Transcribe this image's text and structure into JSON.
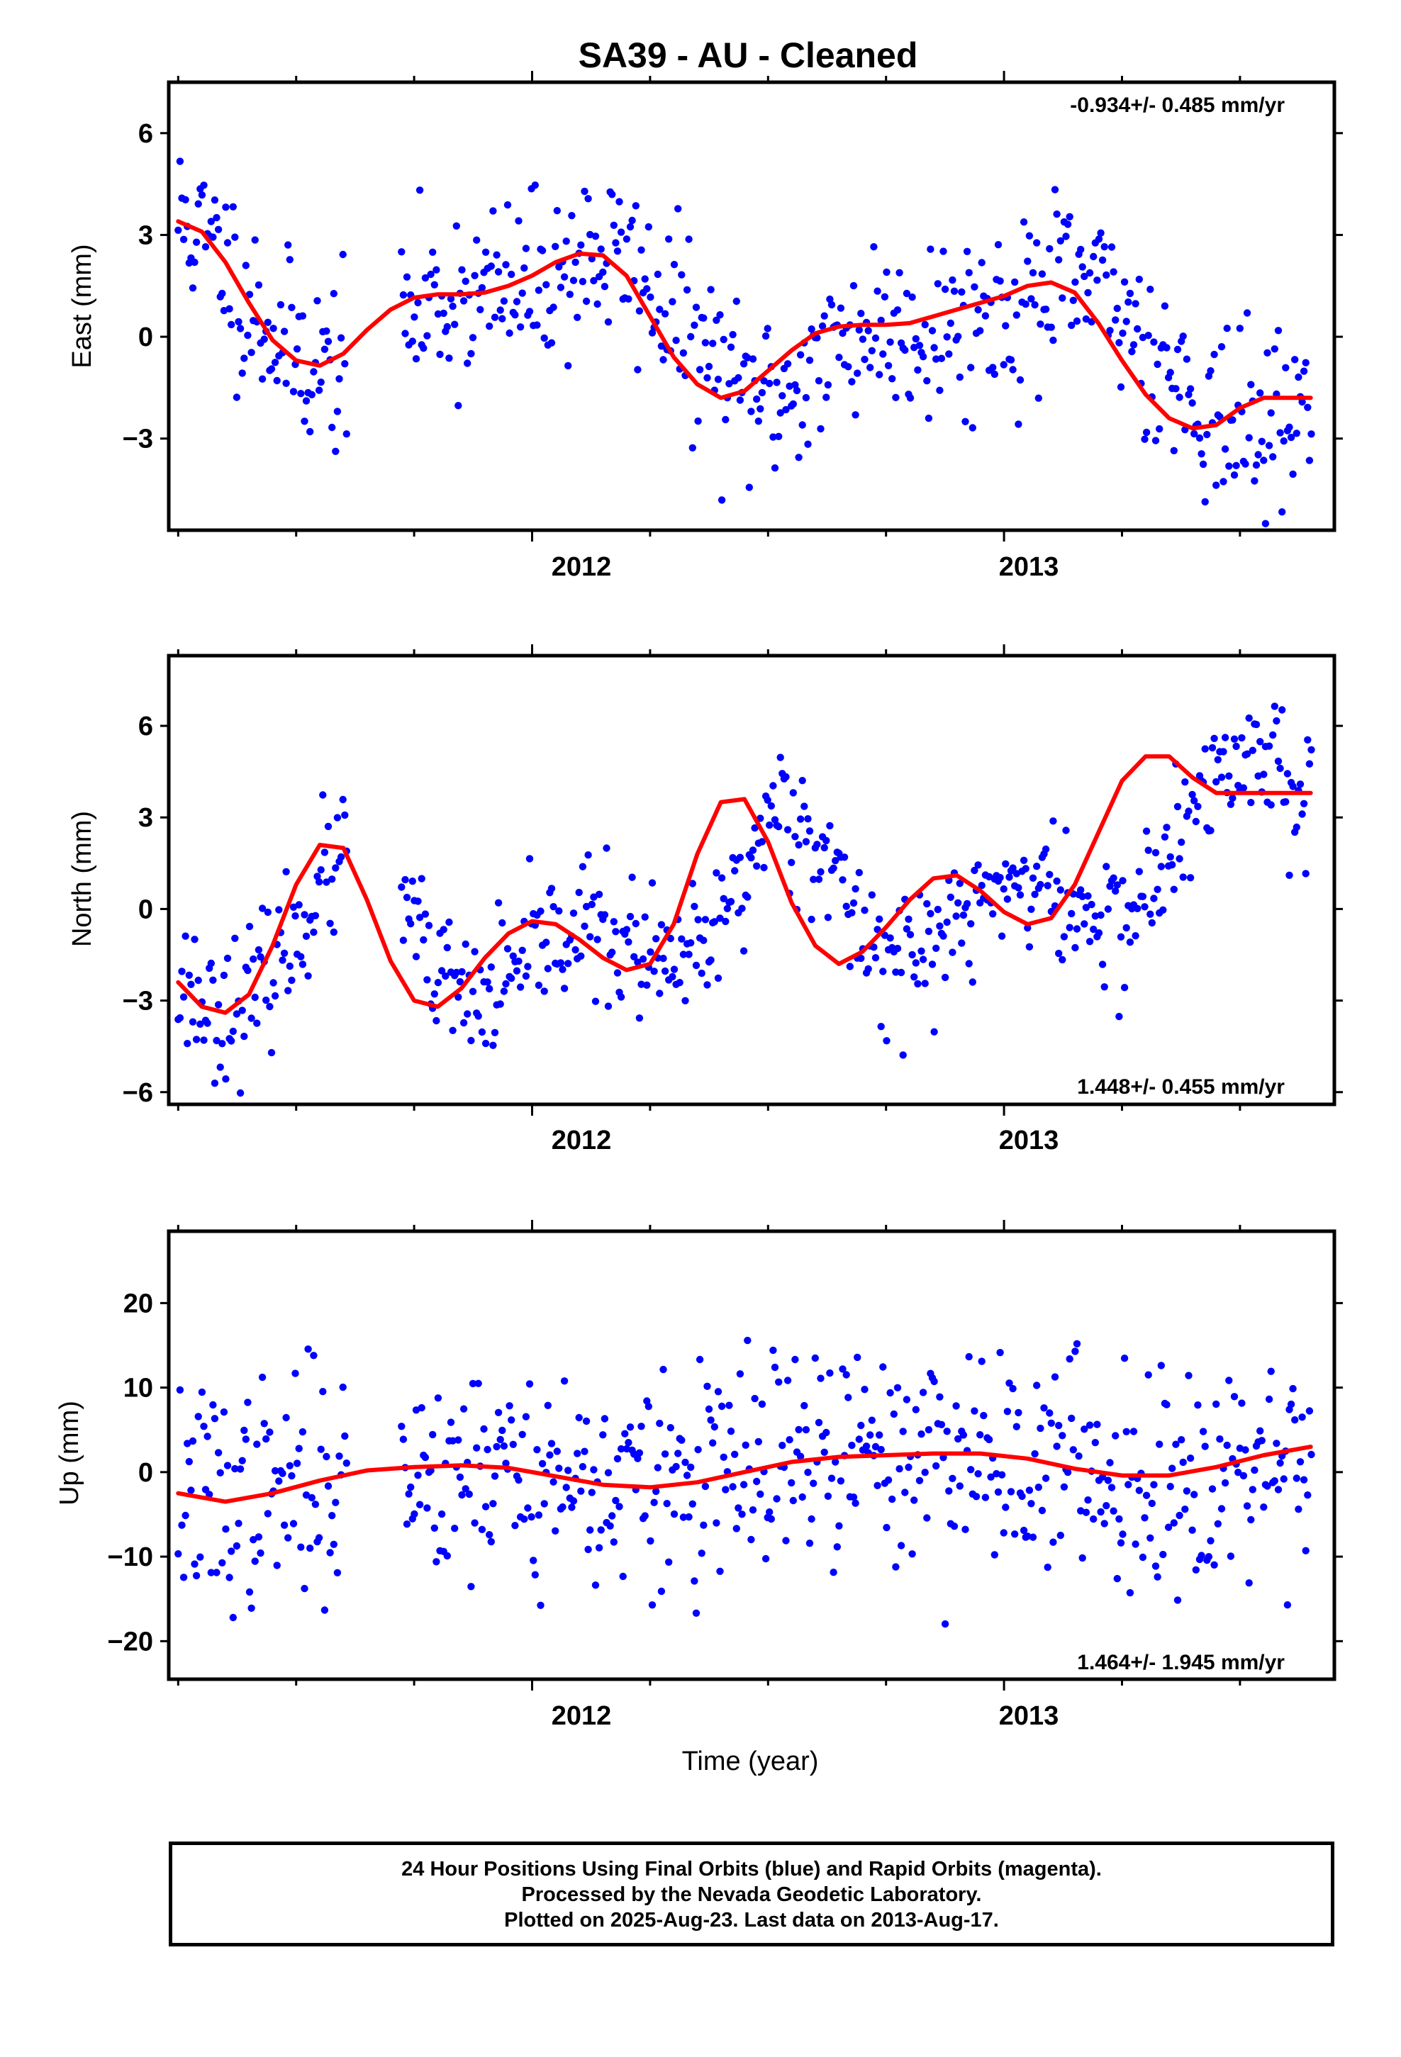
{
  "title": "SA39  - AU - Cleaned",
  "x_axis": {
    "label": "Time (year)",
    "range": [
      2011.23,
      2013.7
    ],
    "major_ticks": [
      2012,
      2013
    ],
    "minor_ticks": [
      2011.25,
      2011.5,
      2011.75,
      2012.25,
      2012.5,
      2012.75,
      2013.25,
      2013.5
    ]
  },
  "colors": {
    "points": "#0000ff",
    "fit": "#ff0000",
    "axis": "#000000"
  },
  "footer": {
    "line1": "24 Hour Positions Using Final Orbits (blue) and Rapid Orbits (magenta).",
    "line2": "Processed by the Nevada Geodetic Laboratory.",
    "line3": "Plotted on 2025-Aug-23. Last data on 2013-Aug-17."
  },
  "chart_data": [
    {
      "type": "scatter",
      "id": "east",
      "ylabel": "East (mm)",
      "ylim": [
        -5.7,
        7.5
      ],
      "yticks": [
        6,
        3,
        0,
        -3
      ],
      "ytick_labels": [
        "6",
        "3",
        "0",
        "−3"
      ],
      "rate_label": "-0.934+/- 0.485 mm/yr",
      "rate_position": "top-right",
      "fit": {
        "x": [
          2011.25,
          2011.3,
          2011.35,
          2011.4,
          2011.45,
          2011.5,
          2011.55,
          2011.6,
          2011.65,
          2011.7,
          2011.75,
          2011.8,
          2011.85,
          2011.9,
          2011.95,
          2012.0,
          2012.05,
          2012.1,
          2012.15,
          2012.2,
          2012.25,
          2012.3,
          2012.35,
          2012.4,
          2012.45,
          2012.5,
          2012.55,
          2012.6,
          2012.65,
          2012.7,
          2012.75,
          2012.8,
          2012.85,
          2012.9,
          2012.95,
          2013.0,
          2013.05,
          2013.1,
          2013.15,
          2013.2,
          2013.25,
          2013.3,
          2013.35,
          2013.4,
          2013.45,
          2013.5,
          2013.55,
          2013.6,
          2013.65
        ],
        "y": [
          3.4,
          3.1,
          2.2,
          1.0,
          -0.1,
          -0.7,
          -0.85,
          -0.5,
          0.2,
          0.8,
          1.15,
          1.25,
          1.25,
          1.3,
          1.5,
          1.8,
          2.2,
          2.45,
          2.4,
          1.8,
          0.6,
          -0.6,
          -1.4,
          -1.8,
          -1.6,
          -1.0,
          -0.4,
          0.1,
          0.3,
          0.35,
          0.35,
          0.4,
          0.6,
          0.8,
          1.0,
          1.2,
          1.5,
          1.6,
          1.3,
          0.4,
          -0.7,
          -1.7,
          -2.4,
          -2.7,
          -2.6,
          -2.1,
          -1.8,
          -1.8,
          -1.8
        ]
      },
      "knots": {
        "x": [
          2011.25,
          2011.33,
          2011.4,
          2011.48,
          2011.56,
          2011.64,
          2011.72,
          2011.8,
          2011.88,
          2011.96,
          2012.04,
          2012.12,
          2012.2,
          2012.28,
          2012.36,
          2012.44,
          2012.52,
          2012.6,
          2012.68,
          2012.76,
          2012.84,
          2012.92,
          2013.0,
          2013.08,
          2013.16,
          2013.24,
          2013.32,
          2013.4,
          2013.48,
          2013.56,
          2013.64
        ],
        "y": [
          3.5,
          2.6,
          1.0,
          -0.3,
          -0.85,
          -0.5,
          0.4,
          1.1,
          1.25,
          1.3,
          1.8,
          2.4,
          2.2,
          1.0,
          -0.5,
          -1.7,
          -1.7,
          -0.9,
          0.1,
          0.35,
          0.35,
          0.5,
          0.8,
          1.2,
          1.55,
          0.9,
          -0.4,
          -1.8,
          -2.6,
          -2.7,
          -2.0
        ]
      },
      "scatter_sd": 1.3,
      "gaps": [
        [
          2011.61,
          2011.72
        ]
      ],
      "n_points": 620,
      "seed": 11
    },
    {
      "type": "scatter",
      "id": "north",
      "ylabel": "North (mm)",
      "ylim": [
        -6.4,
        8.3
      ],
      "yticks": [
        6,
        3,
        0,
        -3,
        -6
      ],
      "ytick_labels": [
        "6",
        "3",
        "0",
        "−3",
        "−6"
      ],
      "rate_label": "1.448+/- 0.455 mm/yr",
      "rate_position": "bottom-right",
      "fit": {
        "x": [
          2011.25,
          2011.3,
          2011.35,
          2011.4,
          2011.45,
          2011.5,
          2011.55,
          2011.6,
          2011.65,
          2011.7,
          2011.75,
          2011.8,
          2011.85,
          2011.9,
          2011.95,
          2012.0,
          2012.05,
          2012.1,
          2012.15,
          2012.2,
          2012.25,
          2012.3,
          2012.35,
          2012.4,
          2012.45,
          2012.5,
          2012.55,
          2012.6,
          2012.65,
          2012.7,
          2012.75,
          2012.8,
          2012.85,
          2012.9,
          2012.95,
          2013.0,
          2013.05,
          2013.1,
          2013.15,
          2013.2,
          2013.25,
          2013.3,
          2013.35,
          2013.4,
          2013.45,
          2013.5,
          2013.55,
          2013.6,
          2013.65
        ],
        "y": [
          -2.4,
          -3.2,
          -3.4,
          -2.8,
          -1.2,
          0.8,
          2.1,
          2.0,
          0.3,
          -1.7,
          -3.0,
          -3.2,
          -2.6,
          -1.6,
          -0.8,
          -0.4,
          -0.5,
          -1.0,
          -1.6,
          -2.0,
          -1.8,
          -0.5,
          1.8,
          3.5,
          3.6,
          2.2,
          0.2,
          -1.2,
          -1.8,
          -1.4,
          -0.6,
          0.3,
          1.0,
          1.1,
          0.6,
          -0.1,
          -0.5,
          -0.3,
          0.8,
          2.5,
          4.2,
          5.0,
          5.0,
          4.3,
          3.8,
          3.8,
          3.8,
          3.8,
          3.8
        ]
      },
      "knots": {
        "x": [
          2011.25,
          2011.33,
          2011.4,
          2011.48,
          2011.56,
          2011.64,
          2011.72,
          2011.8,
          2011.88,
          2011.96,
          2012.04,
          2012.12,
          2012.2,
          2012.28,
          2012.36,
          2012.44,
          2012.52,
          2012.6,
          2012.68,
          2012.76,
          2012.84,
          2012.92,
          2013.0,
          2013.08,
          2013.16,
          2013.24,
          2013.32,
          2013.4,
          2013.48,
          2013.56,
          2013.64
        ],
        "y": [
          -2.4,
          -3.3,
          -3.0,
          -1.3,
          1.0,
          2.2,
          0.3,
          -2.3,
          -3.1,
          -2.3,
          -0.9,
          -0.5,
          -1.2,
          -2.0,
          -1.5,
          0.8,
          3.5,
          2.4,
          -0.3,
          -1.6,
          -1.3,
          -0.2,
          0.9,
          0.8,
          -0.2,
          -0.5,
          0.8,
          3.0,
          4.8,
          5.1,
          3.8
        ]
      },
      "scatter_sd": 1.1,
      "gaps": [
        [
          2011.61,
          2011.72
        ]
      ],
      "n_points": 620,
      "seed": 23
    },
    {
      "type": "scatter",
      "id": "up",
      "ylabel": "Up (mm)",
      "ylim": [
        -24.5,
        28.5
      ],
      "yticks": [
        20,
        10,
        0,
        -10,
        -20
      ],
      "ytick_labels": [
        "20",
        "10",
        "0",
        "−10",
        "−20"
      ],
      "rate_label": "1.464+/- 1.945 mm/yr",
      "rate_position": "bottom-right",
      "fit": {
        "x": [
          2011.25,
          2011.35,
          2011.45,
          2011.55,
          2011.65,
          2011.75,
          2011.85,
          2011.95,
          2012.05,
          2012.15,
          2012.25,
          2012.35,
          2012.45,
          2012.55,
          2012.65,
          2012.75,
          2012.85,
          2012.95,
          2013.05,
          2013.15,
          2013.25,
          2013.35,
          2013.45,
          2013.55,
          2013.65
        ],
        "y": [
          -2.5,
          -3.5,
          -2.5,
          -1.0,
          0.2,
          0.6,
          0.8,
          0.5,
          -0.5,
          -1.5,
          -1.8,
          -1.2,
          0.0,
          1.2,
          1.8,
          2.0,
          2.2,
          2.2,
          1.6,
          0.4,
          -0.4,
          -0.4,
          0.6,
          2.0,
          3.0
        ]
      },
      "knots": {
        "x": [
          2011.25,
          2011.35,
          2011.45,
          2011.55,
          2011.65,
          2011.75,
          2011.85,
          2011.95,
          2012.05,
          2012.15,
          2012.25,
          2012.35,
          2012.45,
          2012.55,
          2012.65,
          2012.75,
          2012.85,
          2012.95,
          2013.05,
          2013.15,
          2013.25,
          2013.35,
          2013.45,
          2013.55,
          2013.65
        ],
        "y": [
          -2.5,
          -3.5,
          -2.5,
          -1.0,
          0.2,
          0.6,
          0.8,
          0.5,
          -0.5,
          -1.5,
          -1.8,
          -1.2,
          0.0,
          1.2,
          1.8,
          2.0,
          2.2,
          2.2,
          1.6,
          0.4,
          -0.4,
          -0.4,
          0.6,
          2.0,
          3.0
        ]
      },
      "scatter_sd": 6.5,
      "gaps": [
        [
          2011.61,
          2011.72
        ]
      ],
      "n_points": 620,
      "seed": 37
    }
  ]
}
